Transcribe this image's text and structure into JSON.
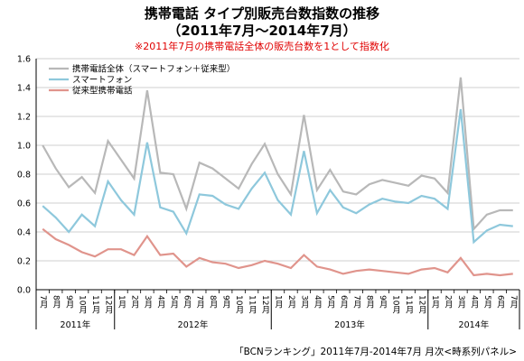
{
  "header": {
    "title_line1": "携帯電話 タイプ別販売台数指数の推移",
    "title_line2": "（2011年7月～2014年7月）",
    "note": "※2011年7月の携帯電話全体の販売台数を1として指数化"
  },
  "footer": {
    "source": "「BCNランキング」2011年7月-2014年7月 月次<時系列パネル>"
  },
  "colors": {
    "total": "#b8b8b8",
    "smartphone": "#8ec8dc",
    "feature": "#e0948c",
    "axis": "#000000",
    "grid": "#bfbfbf"
  },
  "chart_data": {
    "type": "line",
    "ylim": [
      0,
      1.6
    ],
    "yticks": [
      "0.0",
      "0.2",
      "0.4",
      "0.6",
      "0.8",
      "1.0",
      "1.2",
      "1.4",
      "1.6"
    ],
    "month_labels": [
      "7月",
      "8月",
      "9月",
      "10月",
      "11月",
      "12月",
      "1月",
      "2月",
      "3月",
      "4月",
      "5月",
      "6月",
      "7月",
      "8月",
      "9月",
      "10月",
      "11月",
      "12月",
      "1月",
      "2月",
      "3月",
      "4月",
      "5月",
      "6月",
      "7月",
      "8月",
      "9月",
      "10月",
      "11月",
      "12月",
      "1月",
      "2月",
      "3月",
      "4月",
      "5月",
      "6月",
      "7月"
    ],
    "year_groups": [
      {
        "label": "2011年",
        "count": 6
      },
      {
        "label": "2012年",
        "count": 12
      },
      {
        "label": "2013年",
        "count": 12
      },
      {
        "label": "2014年",
        "count": 7
      }
    ],
    "legend_position": "top-left",
    "series": [
      {
        "name": "携帯電話全体（スマートフォン＋従来型）",
        "color_key": "total",
        "values": [
          1.0,
          0.84,
          0.71,
          0.78,
          0.67,
          1.03,
          0.9,
          0.77,
          1.38,
          0.81,
          0.8,
          0.56,
          0.88,
          0.84,
          0.77,
          0.7,
          0.87,
          1.01,
          0.8,
          0.66,
          1.21,
          0.69,
          0.83,
          0.68,
          0.66,
          0.73,
          0.76,
          0.74,
          0.72,
          0.79,
          0.77,
          0.67,
          1.47,
          0.42,
          0.52,
          0.55,
          0.55
        ]
      },
      {
        "name": "スマートフォン",
        "color_key": "smartphone",
        "values": [
          0.58,
          0.5,
          0.4,
          0.52,
          0.44,
          0.75,
          0.62,
          0.52,
          1.02,
          0.57,
          0.54,
          0.39,
          0.66,
          0.65,
          0.59,
          0.56,
          0.7,
          0.81,
          0.62,
          0.52,
          0.96,
          0.53,
          0.69,
          0.57,
          0.53,
          0.59,
          0.63,
          0.61,
          0.6,
          0.65,
          0.63,
          0.56,
          1.25,
          0.33,
          0.41,
          0.45,
          0.44
        ]
      },
      {
        "name": "従来型携帯電話",
        "color_key": "feature",
        "values": [
          0.42,
          0.35,
          0.31,
          0.26,
          0.23,
          0.28,
          0.28,
          0.24,
          0.37,
          0.24,
          0.25,
          0.16,
          0.22,
          0.19,
          0.18,
          0.15,
          0.17,
          0.2,
          0.18,
          0.15,
          0.24,
          0.16,
          0.14,
          0.11,
          0.13,
          0.14,
          0.13,
          0.12,
          0.11,
          0.14,
          0.15,
          0.12,
          0.22,
          0.1,
          0.11,
          0.1,
          0.11
        ]
      }
    ]
  }
}
